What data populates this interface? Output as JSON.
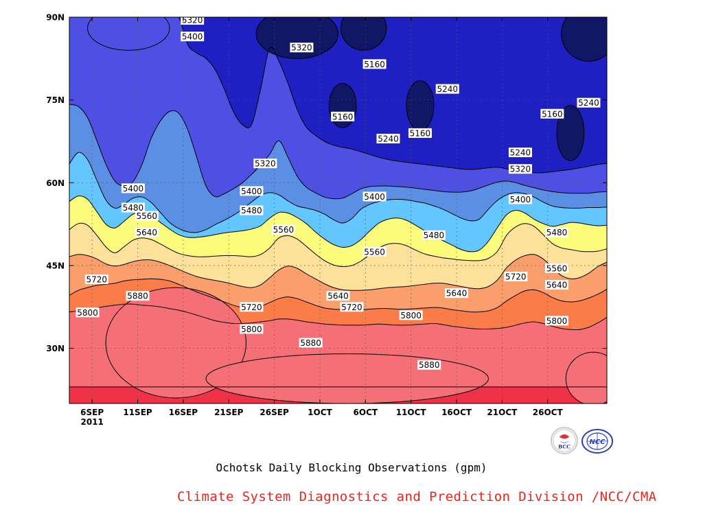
{
  "chart_data": {
    "type": "heatmap",
    "subtype": "filled-contour",
    "title": "Ochotsk Daily Blocking Observations (gpm)",
    "x_ticks": [
      {
        "label": "6SEP",
        "sub": "2011",
        "day": 6
      },
      {
        "label": "11SEP",
        "day": 11
      },
      {
        "label": "16SEP",
        "day": 16
      },
      {
        "label": "21SEP",
        "day": 21
      },
      {
        "label": "26SEP",
        "day": 26
      },
      {
        "label": "1OCT",
        "day": 31
      },
      {
        "label": "6OCT",
        "day": 36
      },
      {
        "label": "11OCT",
        "day": 41
      },
      {
        "label": "16OCT",
        "day": 46
      },
      {
        "label": "21OCT",
        "day": 51
      },
      {
        "label": "26OCT",
        "day": 56
      }
    ],
    "x_range_days": [
      3.5,
      62.5
    ],
    "y_ticks": [
      "30N",
      "45N",
      "60N",
      "75N",
      "90N"
    ],
    "y_tick_values": [
      30,
      45,
      60,
      75,
      90
    ],
    "y_range": [
      20,
      90
    ],
    "grid": true,
    "contour_levels": [
      5160,
      5240,
      5320,
      5400,
      5480,
      5560,
      5640,
      5720,
      5800,
      5880
    ],
    "fill_colors": [
      "#101766",
      "#1f20c2",
      "#4d50e3",
      "#5b8fe3",
      "#63c6ff",
      "#fcfc7c",
      "#fde09a",
      "#fa9e6b",
      "#f97c49",
      "#f46f76",
      "#ef3247"
    ],
    "boundaries": [
      {
        "level": 5880,
        "y": [
          23,
          23,
          23,
          23,
          23,
          23,
          23,
          23,
          23,
          23,
          23,
          23,
          23,
          23,
          23,
          23,
          23,
          23,
          23,
          23,
          23,
          23,
          23,
          23,
          23,
          23,
          23,
          23,
          23,
          23,
          23,
          23,
          23,
          23,
          23,
          23,
          23,
          23,
          23,
          23,
          23,
          23,
          23,
          23,
          23,
          23,
          23,
          23,
          23,
          23,
          23,
          23,
          23,
          23,
          23,
          23,
          23,
          23,
          23,
          23
        ]
      },
      {
        "level": 5800,
        "y": [
          36.6,
          36.8,
          37,
          37.3,
          37.6,
          37.8,
          38,
          38,
          37.8,
          37.7,
          37.5,
          37.2,
          36.9,
          36.5,
          36,
          35.5,
          35,
          34.7,
          34.5,
          34.5,
          34.6,
          34.8,
          35,
          35.3,
          35.3,
          35.1,
          34.8,
          34.6,
          34.4,
          34.3,
          34.2,
          34.2,
          34.2,
          34.3,
          34.4,
          34.3,
          34.2,
          34.2,
          34.3,
          34.4,
          34.5,
          34.3,
          34,
          33.8,
          33.6,
          33.5,
          33.5,
          33.6,
          33.8,
          34.2,
          34.6,
          34.8,
          34.5,
          34,
          33.6,
          33.4,
          33.4,
          33.8,
          34.6,
          35.6
        ]
      },
      {
        "level": 5720,
        "y": [
          39.6,
          40.5,
          41,
          41.4,
          41.6,
          41.8,
          42.2,
          42.4,
          42.5,
          42.6,
          42.5,
          42.2,
          41.6,
          40.9,
          40.2,
          39.6,
          39,
          38.4,
          37.8,
          37.4,
          37.3,
          37.6,
          38.3,
          39,
          39.3,
          39,
          38.4,
          37.8,
          37.3,
          37.1,
          37,
          37,
          37,
          37.1,
          37.2,
          37.2,
          37.1,
          37.1,
          37.2,
          37.3,
          37.4,
          37.3,
          37,
          36.8,
          36.6,
          36.6,
          36.8,
          37.4,
          38.6,
          39.6,
          40.4,
          40.6,
          40.1,
          39.2,
          38.6,
          38.4,
          38.6,
          39.1,
          39.8,
          40.7
        ]
      },
      {
        "level": 5640,
        "y": [
          46.6,
          47,
          46.8,
          46.2,
          45.3,
          44.9,
          45.2,
          45.7,
          46,
          46,
          45.6,
          45,
          44.3,
          43.6,
          43,
          42.6,
          42.3,
          42,
          41.6,
          41.2,
          41,
          41.5,
          42.8,
          44.2,
          44.9,
          44.5,
          43.5,
          42.6,
          41.7,
          41,
          40.6,
          40.5,
          40.5,
          40.6,
          40.8,
          41,
          41.1,
          41.2,
          41.4,
          41.6,
          41.8,
          41.8,
          41.5,
          41.2,
          40.9,
          40.8,
          41.2,
          42.4,
          44.6,
          46,
          46.8,
          47,
          46.2,
          44.7,
          43.2,
          42.6,
          42.8,
          43.6,
          44.8,
          45.6
        ]
      },
      {
        "level": 5560,
        "y": [
          51.5,
          52.6,
          52.3,
          50.5,
          48.4,
          47.3,
          48.4,
          49.6,
          50,
          49.7,
          48.9,
          48,
          47.2,
          46.8,
          46.6,
          46.6,
          46.7,
          46.8,
          46.8,
          46.7,
          46.6,
          47,
          48.2,
          50,
          50.4,
          49.8,
          48.5,
          47.1,
          45.9,
          45.1,
          44.8,
          45,
          45.8,
          47,
          48.2,
          48.9,
          49,
          48.6,
          47.8,
          47.1,
          46.7,
          46.4,
          46.2,
          46,
          45.9,
          45.9,
          46.3,
          47.6,
          50.5,
          52,
          52.6,
          52.1,
          50.6,
          49,
          48.2,
          47.9,
          47.6,
          47.5,
          47.6,
          48
        ]
      },
      {
        "level": 5480,
        "y": [
          56.6,
          57.6,
          57,
          54.8,
          52.5,
          51.8,
          53,
          54.3,
          54.6,
          54,
          52.8,
          51.6,
          50.6,
          50.1,
          50.1,
          50.3,
          50.6,
          50.9,
          51.1,
          51.3,
          51.6,
          52.2,
          53.6,
          54.6,
          54.5,
          53.7,
          52.6,
          51.1,
          49.8,
          48.8,
          48.3,
          48.6,
          49.7,
          51.3,
          52.7,
          53.4,
          53.6,
          53.2,
          52.3,
          51.3,
          50.3,
          49.5,
          48.7,
          47.9,
          47.5,
          47.8,
          49.4,
          51.9,
          54.2,
          55,
          54.5,
          53.4,
          52.6,
          52.1,
          52.4,
          52.8,
          52.7,
          52.4,
          52.2,
          52.3
        ]
      },
      {
        "level": 5400,
        "y": [
          63.4,
          65.5,
          64.2,
          60.5,
          56.9,
          55.4,
          56.1,
          57.2,
          57.4,
          56.4,
          54.6,
          52.8,
          51.7,
          51.1,
          51,
          51.5,
          52.4,
          53.2,
          54.1,
          55.2,
          56.5,
          57.7,
          58.2,
          57.8,
          56.7,
          55.8,
          55.4,
          55,
          54.3,
          53.3,
          52.7,
          53.5,
          55.2,
          56.1,
          56.6,
          56.9,
          57,
          56.9,
          56.6,
          56.3,
          55.8,
          55.2,
          54.4,
          53.6,
          53.1,
          53.4,
          55.2,
          56.8,
          57.8,
          58.2,
          58,
          57.4,
          56.5,
          55.8,
          55.5,
          55.4,
          55.4,
          55.5,
          55.5,
          55.6
        ]
      },
      {
        "level": 5320,
        "y": [
          74.2,
          73.8,
          71.8,
          67.7,
          63.4,
          60.3,
          59.4,
          60.2,
          63.4,
          68.1,
          71.2,
          72.9,
          72.6,
          69.6,
          64.5,
          59.4,
          57.5,
          58,
          58.9,
          60,
          61.5,
          63.2,
          65.2,
          67.6,
          64.6,
          61.2,
          59.2,
          58.2,
          57.4,
          57.1,
          57.2,
          58,
          58.9,
          59.3,
          59.4,
          59.4,
          59.3,
          59.2,
          59,
          58.8,
          58.6,
          58.4,
          58.3,
          58.3,
          58.5,
          59,
          59.6,
          60.1,
          60.3,
          60,
          59.5,
          59.1,
          58.7,
          58.4,
          58.2,
          58.1,
          58.1,
          58.1,
          58.3,
          58.4
        ]
      },
      {
        "level": 5240,
        "y": [
          90,
          90,
          90,
          90,
          90,
          90,
          90,
          90,
          90,
          90,
          90,
          90,
          90,
          85,
          83.5,
          82.5,
          80.5,
          77,
          72.9,
          70.5,
          70.5,
          77,
          84.4,
          82,
          78,
          73.3,
          70.1,
          68.6,
          67.5,
          66.8,
          66.4,
          66.1,
          65.6,
          65.1,
          64.6,
          64.2,
          63.9,
          63.7,
          63.5,
          63.3,
          63.1,
          62.9,
          62.7,
          62.5,
          62.4,
          62.5,
          62.7,
          62.8,
          62.5,
          62.2,
          62,
          61.8,
          61.8,
          62,
          62.2,
          62.4,
          62.7,
          63,
          63.3,
          63.5
        ]
      },
      {
        "level": 5160,
        "y": [
          90,
          90,
          90,
          90,
          90,
          90,
          90,
          90,
          90,
          90,
          90,
          90,
          90,
          90,
          90,
          90,
          90,
          90,
          90,
          90,
          90,
          90,
          90,
          90,
          90,
          90,
          90,
          90,
          90,
          90,
          90,
          90,
          90,
          90,
          90,
          90,
          90,
          90,
          90,
          90,
          90,
          90,
          90,
          90,
          90,
          90,
          90,
          90,
          90,
          90,
          90,
          90,
          90,
          90,
          90,
          90,
          90,
          90,
          90,
          90
        ]
      }
    ],
    "islands": [
      {
        "level": 5880,
        "cx": 15.2,
        "cy": 31,
        "rx": 7.7,
        "ry": 10
      },
      {
        "level": 5880,
        "cx": 34,
        "cy": 24.5,
        "rx": 15.5,
        "ry": 4.5
      },
      {
        "level": 5880,
        "cx": 61,
        "cy": 24.5,
        "rx": 3,
        "ry": 4.8
      },
      {
        "level": 5320,
        "cx": 10,
        "cy": 88,
        "rx": 4.5,
        "ry": 4
      },
      {
        "level": 5160,
        "cx": 28.5,
        "cy": 87,
        "rx": 4.5,
        "ry": 4.5
      },
      {
        "level": 5160,
        "cx": 35.8,
        "cy": 88,
        "rx": 2.5,
        "ry": 4
      },
      {
        "level": 5160,
        "cx": 33.5,
        "cy": 74,
        "rx": 1.5,
        "ry": 4
      },
      {
        "level": 5160,
        "cx": 42,
        "cy": 74,
        "rx": 1.5,
        "ry": 4.5
      },
      {
        "level": 5160,
        "cx": 58.5,
        "cy": 69,
        "rx": 1.5,
        "ry": 5
      },
      {
        "level": 5160,
        "cx": 60.5,
        "cy": 87,
        "rx": 3,
        "ry": 5
      }
    ],
    "contour_labels": [
      {
        "text": "5320",
        "day": 17,
        "lat": 89.5
      },
      {
        "text": "5400",
        "day": 17,
        "lat": 86.5
      },
      {
        "text": "5320",
        "day": 29,
        "lat": 84.5
      },
      {
        "text": "5160",
        "day": 37,
        "lat": 81.5
      },
      {
        "text": "5240",
        "day": 45,
        "lat": 77
      },
      {
        "text": "5240",
        "day": 60.5,
        "lat": 74.5
      },
      {
        "text": "5160",
        "day": 33.5,
        "lat": 72
      },
      {
        "text": "5160",
        "day": 56.5,
        "lat": 72.5
      },
      {
        "text": "5240",
        "day": 38.5,
        "lat": 68
      },
      {
        "text": "5160",
        "day": 42,
        "lat": 69
      },
      {
        "text": "5240",
        "day": 53,
        "lat": 65.5
      },
      {
        "text": "5320",
        "day": 25,
        "lat": 63.5
      },
      {
        "text": "5320",
        "day": 53,
        "lat": 62.5
      },
      {
        "text": "5400",
        "day": 10.5,
        "lat": 59
      },
      {
        "text": "5400",
        "day": 23.5,
        "lat": 58.5
      },
      {
        "text": "5400",
        "day": 37,
        "lat": 57.5
      },
      {
        "text": "5400",
        "day": 53,
        "lat": 57
      },
      {
        "text": "5480",
        "day": 10.5,
        "lat": 55.5
      },
      {
        "text": "5480",
        "day": 23.5,
        "lat": 55
      },
      {
        "text": "5560",
        "day": 12,
        "lat": 54
      },
      {
        "text": "5480",
        "day": 43.5,
        "lat": 50.5
      },
      {
        "text": "5480",
        "day": 57,
        "lat": 51
      },
      {
        "text": "5560",
        "day": 27,
        "lat": 51.5
      },
      {
        "text": "5640",
        "day": 12,
        "lat": 51
      },
      {
        "text": "5560",
        "day": 37,
        "lat": 47.5
      },
      {
        "text": "5560",
        "day": 57,
        "lat": 44.5
      },
      {
        "text": "5720",
        "day": 6.5,
        "lat": 42.5
      },
      {
        "text": "5720",
        "day": 52.5,
        "lat": 43
      },
      {
        "text": "5640",
        "day": 57,
        "lat": 41.5
      },
      {
        "text": "5640",
        "day": 33,
        "lat": 39.5
      },
      {
        "text": "5640",
        "day": 46,
        "lat": 40
      },
      {
        "text": "5880",
        "day": 11,
        "lat": 39.5
      },
      {
        "text": "5720",
        "day": 23.5,
        "lat": 37.5
      },
      {
        "text": "5720",
        "day": 34.5,
        "lat": 37.5
      },
      {
        "text": "5800",
        "day": 5.5,
        "lat": 36.5
      },
      {
        "text": "5800",
        "day": 41,
        "lat": 36
      },
      {
        "text": "5800",
        "day": 57,
        "lat": 35
      },
      {
        "text": "5800",
        "day": 23.5,
        "lat": 33.5
      },
      {
        "text": "5880",
        "day": 30,
        "lat": 31
      },
      {
        "text": "5880",
        "day": 43,
        "lat": 27
      }
    ]
  },
  "caption": "Ochotsk Daily Blocking Observations (gpm)",
  "credit": "Climate System Diagnostics and Prediction Division /NCC/CMA",
  "credit_color": "#e8261c",
  "logos": [
    {
      "name": "bcc-logo",
      "text": "BCC"
    },
    {
      "name": "ncc-logo",
      "text": "NCC"
    }
  ]
}
